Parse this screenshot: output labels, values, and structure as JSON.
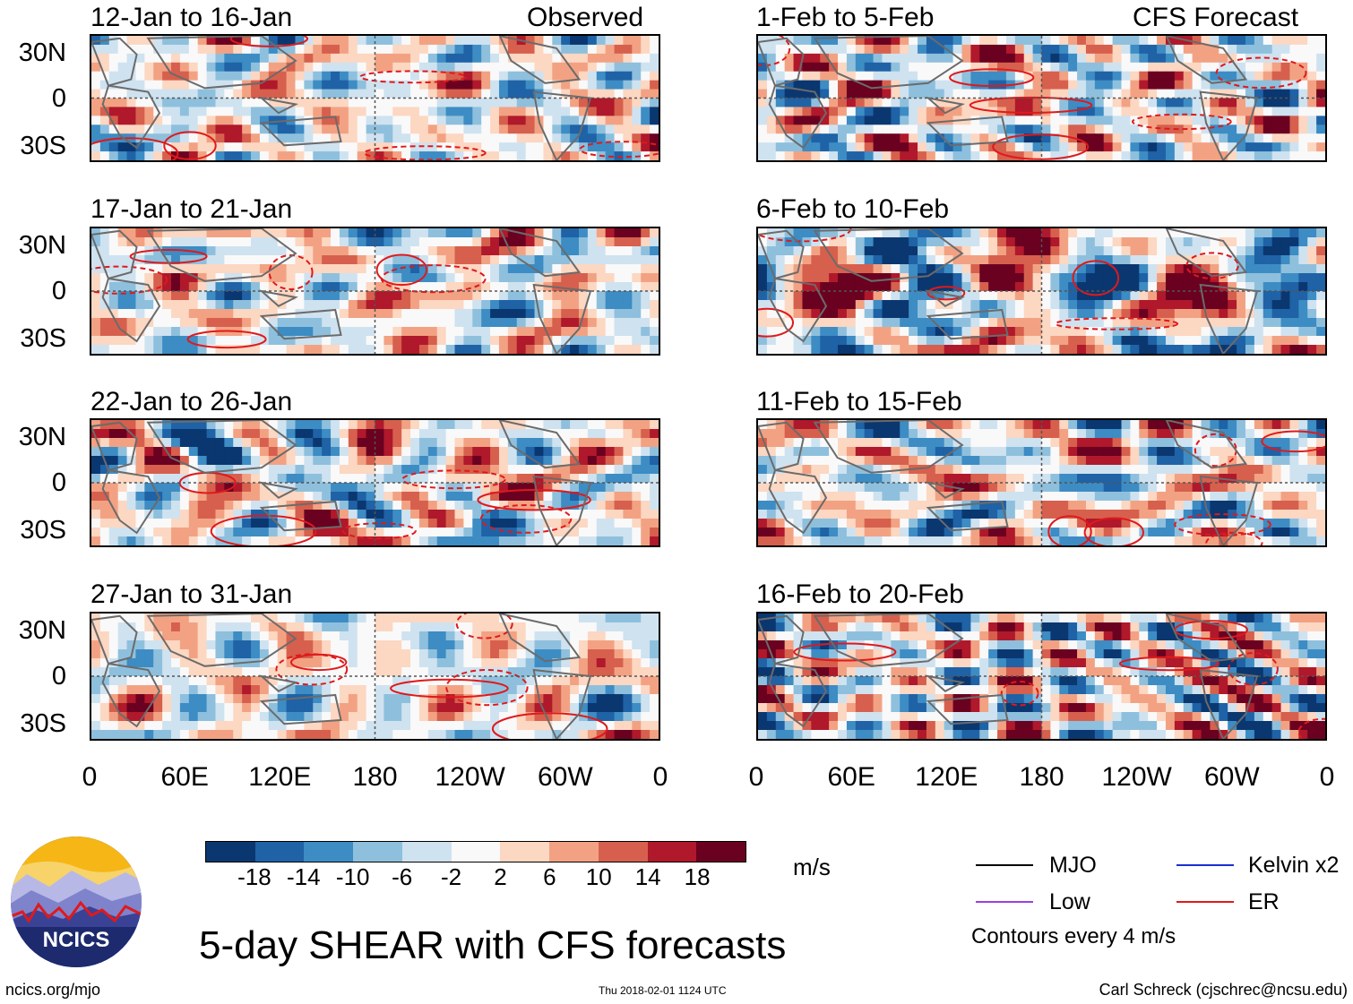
{
  "left_column": {
    "header_label": "Observed",
    "panels": [
      {
        "period": "12-Jan to 16-Jan",
        "seed": 3
      },
      {
        "period": "17-Jan to 21-Jan",
        "seed": 7
      },
      {
        "period": "22-Jan to 26-Jan",
        "seed": 11
      },
      {
        "period": "27-Jan to 31-Jan",
        "seed": 17
      }
    ]
  },
  "right_column": {
    "header_label": "CFS Forecast",
    "panels": [
      {
        "period": "1-Feb to 5-Feb",
        "seed": 23
      },
      {
        "period": "6-Feb to 10-Feb",
        "seed": 29
      },
      {
        "period": "11-Feb to 15-Feb",
        "seed": 31
      },
      {
        "period": "16-Feb to 20-Feb",
        "seed": 37
      }
    ]
  },
  "chart_data": {
    "type": "heatmap",
    "title": "5-day SHEAR with CFS forecasts",
    "lat_labels": [
      "30N",
      "0",
      "30S"
    ],
    "lon_labels": [
      "0",
      "60E",
      "120E",
      "180",
      "120W",
      "60W",
      "0"
    ],
    "lat_range": [
      -40,
      40
    ],
    "lon_range": [
      0,
      360
    ],
    "units": "m/s",
    "colorbar_ticks": [
      "-18",
      "-14",
      "-10",
      "-6",
      "-2",
      "2",
      "6",
      "10",
      "14",
      "18"
    ],
    "colorbar_colors": [
      "#0b3770",
      "#1f62a6",
      "#3d8cc4",
      "#8ec0dd",
      "#cfe2f0",
      "#f9f9f9",
      "#fcd7c2",
      "#f2a283",
      "#d6604d",
      "#b0182b",
      "#6a0120"
    ],
    "contour_interval": "Contours every 4 m/s"
  },
  "legend": {
    "items": [
      {
        "label": "MJO",
        "color": "#000000"
      },
      {
        "label": "Kelvin x2",
        "color": "#1a2fd0"
      },
      {
        "label": "Low",
        "color": "#9b3fe0"
      },
      {
        "label": "ER",
        "color": "#e0191b"
      }
    ],
    "note": "Contours every 4 m/s"
  },
  "footer": {
    "site": "ncics.org/mjo",
    "timestamp": "Thu 2018-02-01 1124 UTC",
    "author": "Carl Schreck (cjschrec@ncsu.edu)",
    "logo_text": "NCICS"
  }
}
